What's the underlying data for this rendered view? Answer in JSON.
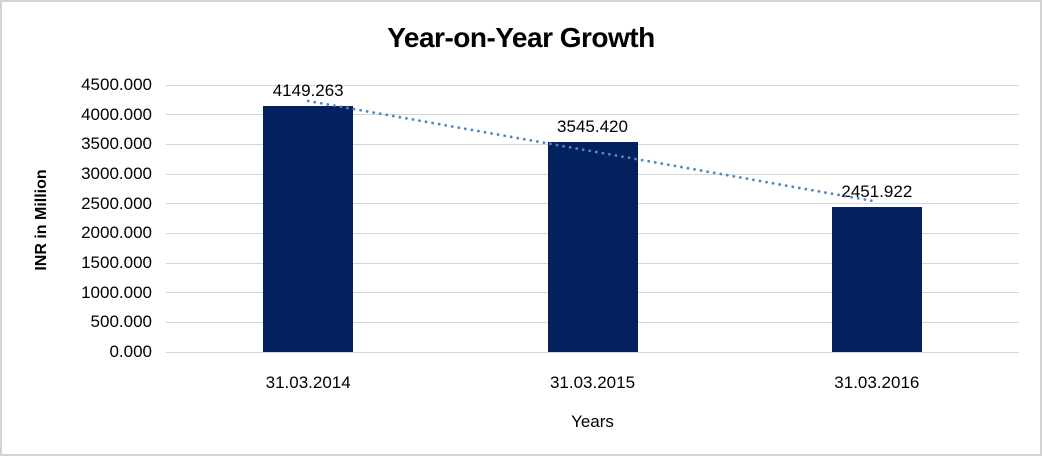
{
  "window": {
    "background": "#ffffff",
    "border_color": "#d3d3d3"
  },
  "chart_data": {
    "type": "bar",
    "title": "Year-on-Year Growth",
    "categories": [
      "31.03.2014",
      "31.03.2015",
      "31.03.2016"
    ],
    "values": [
      4149.263,
      3545.42,
      2451.922
    ],
    "data_labels": [
      "4149.263",
      "3545.420",
      "2451.922"
    ],
    "xlabel": "Years",
    "ylabel": "INR in Million",
    "ylim": [
      0,
      4500
    ],
    "ytick_labels": [
      "4500.000",
      "4000.000",
      "3500.000",
      "3000.000",
      "2500.000",
      "2000.000",
      "1500.000",
      "1000.000",
      "500.000",
      "0.000"
    ],
    "grid": true,
    "legend_position": "none",
    "bar_color": "#03215f",
    "gridline_color": "#d6d6d6",
    "text_color": "#000000",
    "trendline": {
      "type": "linear",
      "style": "dotted",
      "color": "#4f86c8"
    }
  }
}
